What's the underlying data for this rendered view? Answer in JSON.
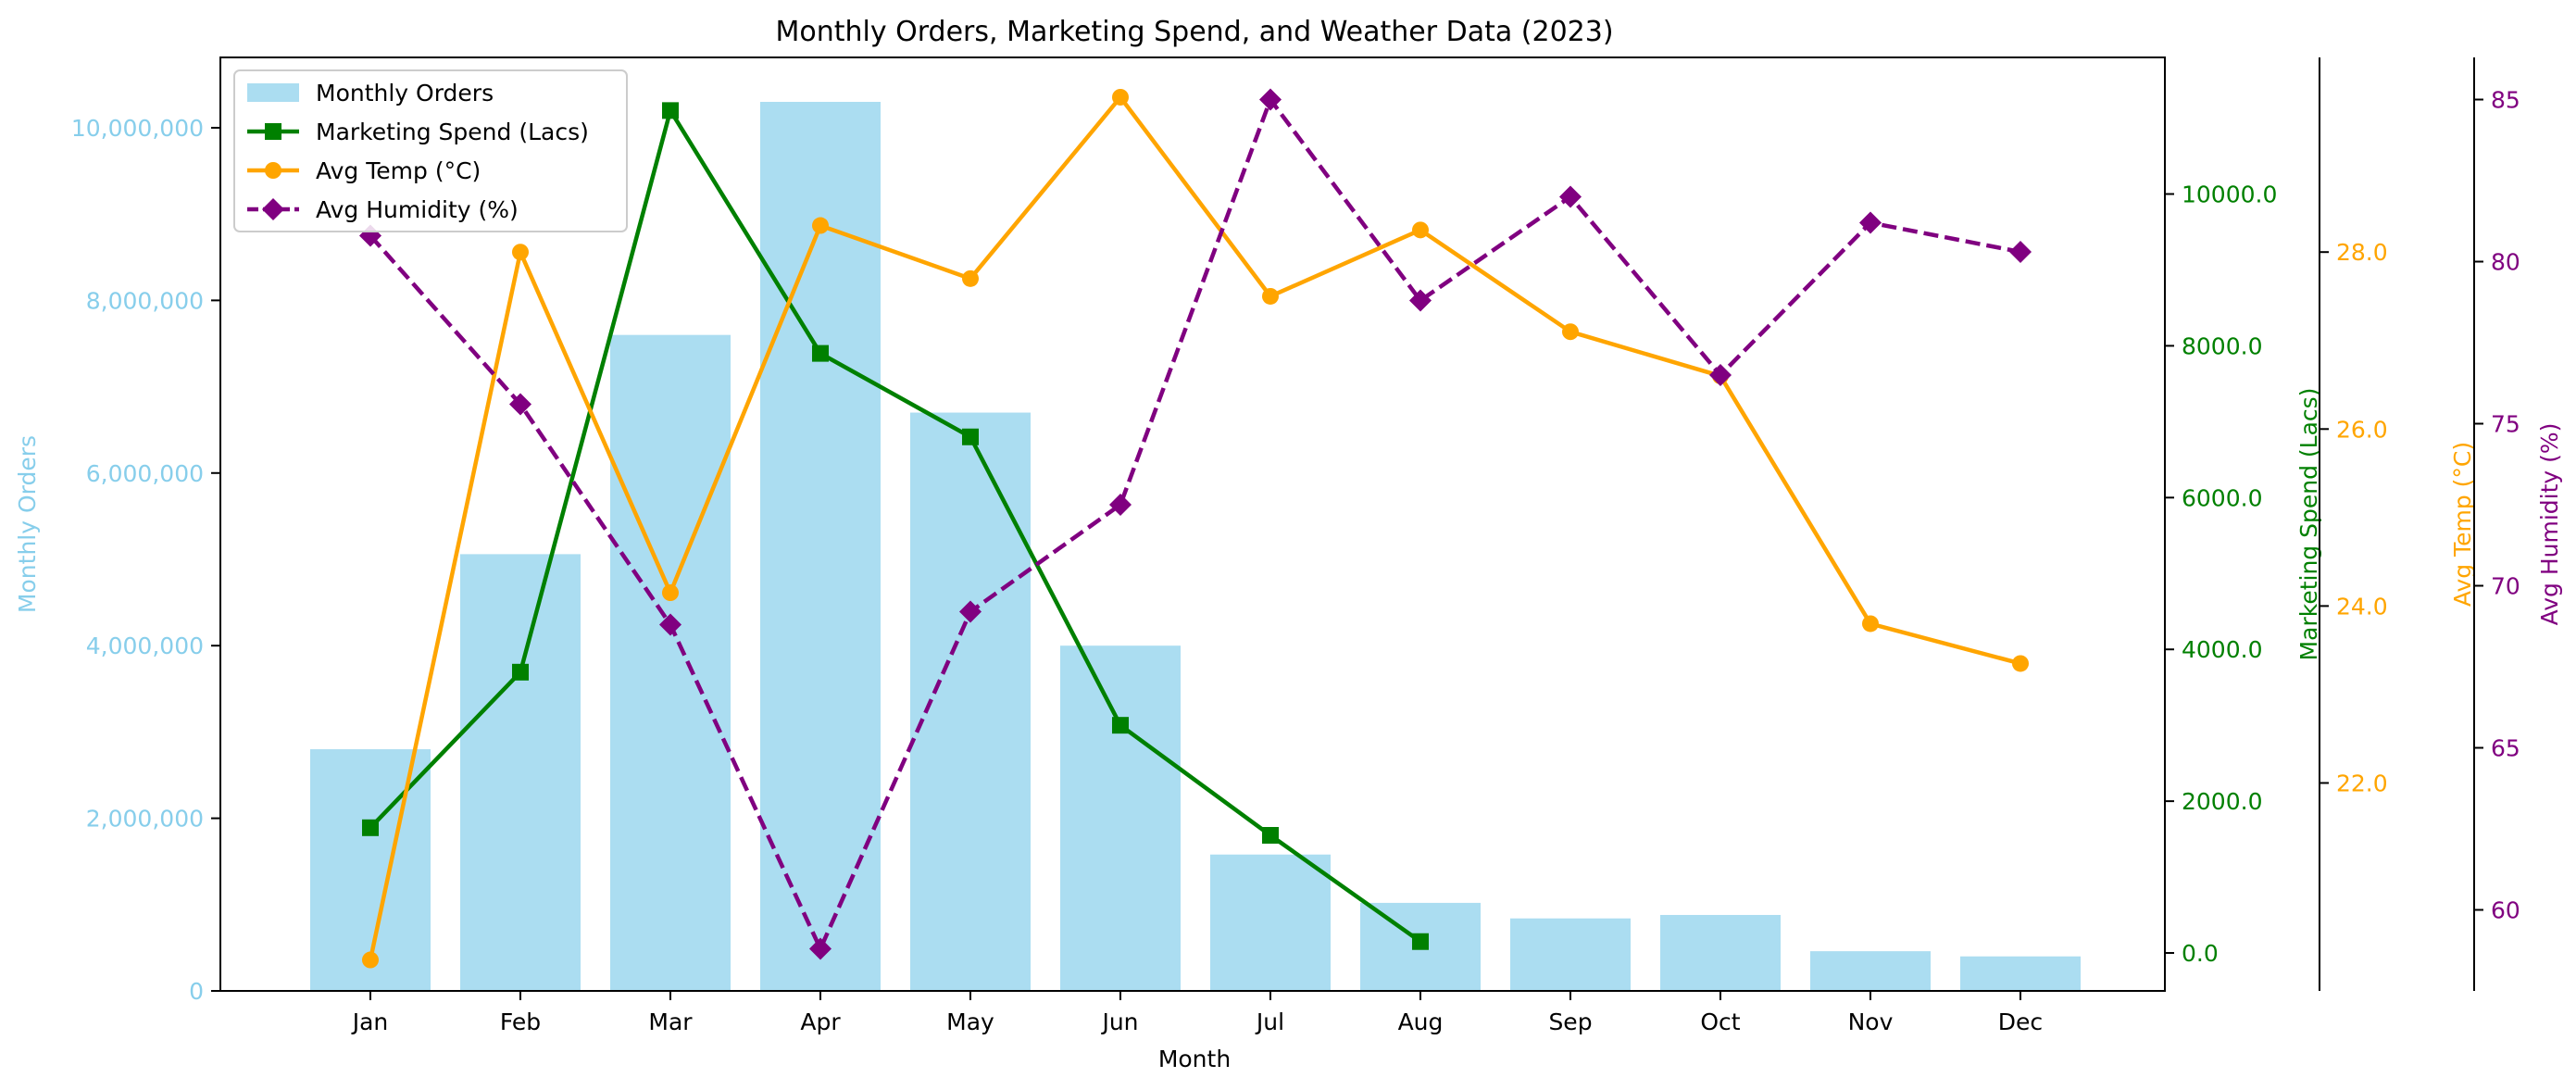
{
  "chart_data": {
    "type": "bar",
    "title": "Monthly Orders, Marketing Spend, and Weather Data (2023)",
    "xlabel": "Month",
    "categories": [
      "Jan",
      "Feb",
      "Mar",
      "Apr",
      "May",
      "Jun",
      "Jul",
      "Aug",
      "Sep",
      "Oct",
      "Nov",
      "Dec"
    ],
    "legend_position": "upper-left",
    "grid": false,
    "axes": {
      "orders": {
        "label": "Monthly Orders",
        "color": "#87CEEB",
        "ylim": [
          0,
          10815000
        ],
        "ticks": [
          0,
          2000000,
          4000000,
          6000000,
          8000000,
          10000000
        ],
        "tick_labels": [
          "0",
          "2,000,000",
          "4,000,000",
          "6,000,000",
          "8,000,000",
          "10,000,000"
        ]
      },
      "spend": {
        "label": "Marketing Spend (Lacs)",
        "color": "#008000",
        "ylim": [
          -500,
          11800
        ],
        "ticks": [
          0,
          2000,
          4000,
          6000,
          8000,
          10000
        ],
        "tick_labels": [
          "0.0",
          "2000.0",
          "4000.0",
          "6000.0",
          "8000.0",
          "10000.0"
        ]
      },
      "temp": {
        "label": "Avg Temp (°C)",
        "color": "#FFA500",
        "ylim": [
          19.65,
          30.2
        ],
        "ticks": [
          22,
          24,
          26,
          28
        ],
        "tick_labels": [
          "22.0",
          "24.0",
          "26.0",
          "28.0"
        ]
      },
      "humidity": {
        "label": "Avg Humidity (%)",
        "color": "#800080",
        "ylim": [
          57.5,
          86.3
        ],
        "ticks": [
          60,
          65,
          70,
          75,
          80,
          85
        ],
        "tick_labels": [
          "60",
          "65",
          "70",
          "75",
          "80",
          "85"
        ]
      }
    },
    "series": [
      {
        "name": "Monthly Orders",
        "kind": "bar",
        "axis": "orders",
        "color": "#87CEEB",
        "values": [
          2800000,
          5060000,
          7600000,
          10300000,
          6700000,
          4000000,
          1580000,
          1020000,
          840000,
          880000,
          460000,
          400000
        ]
      },
      {
        "name": "Marketing Spend (Lacs)",
        "kind": "line",
        "axis": "spend",
        "color": "#008000",
        "marker": "square",
        "dash": "solid",
        "values": [
          1650,
          3700,
          11100,
          7900,
          6800,
          3000,
          1550,
          150,
          null,
          null,
          null,
          null
        ]
      },
      {
        "name": "Avg Temp (°C)",
        "kind": "line",
        "axis": "temp",
        "color": "#FFA500",
        "marker": "circle",
        "dash": "solid",
        "values": [
          20.0,
          28.0,
          24.15,
          28.3,
          27.7,
          29.75,
          27.5,
          28.25,
          27.1,
          26.6,
          23.8,
          23.35
        ]
      },
      {
        "name": "Avg Humidity (%)",
        "kind": "line",
        "axis": "humidity",
        "color": "#800080",
        "marker": "diamond",
        "dash": "dashed",
        "values": [
          80.8,
          75.6,
          68.8,
          58.8,
          69.2,
          72.5,
          85.0,
          78.8,
          82.0,
          76.5,
          81.2,
          80.3
        ]
      }
    ]
  }
}
